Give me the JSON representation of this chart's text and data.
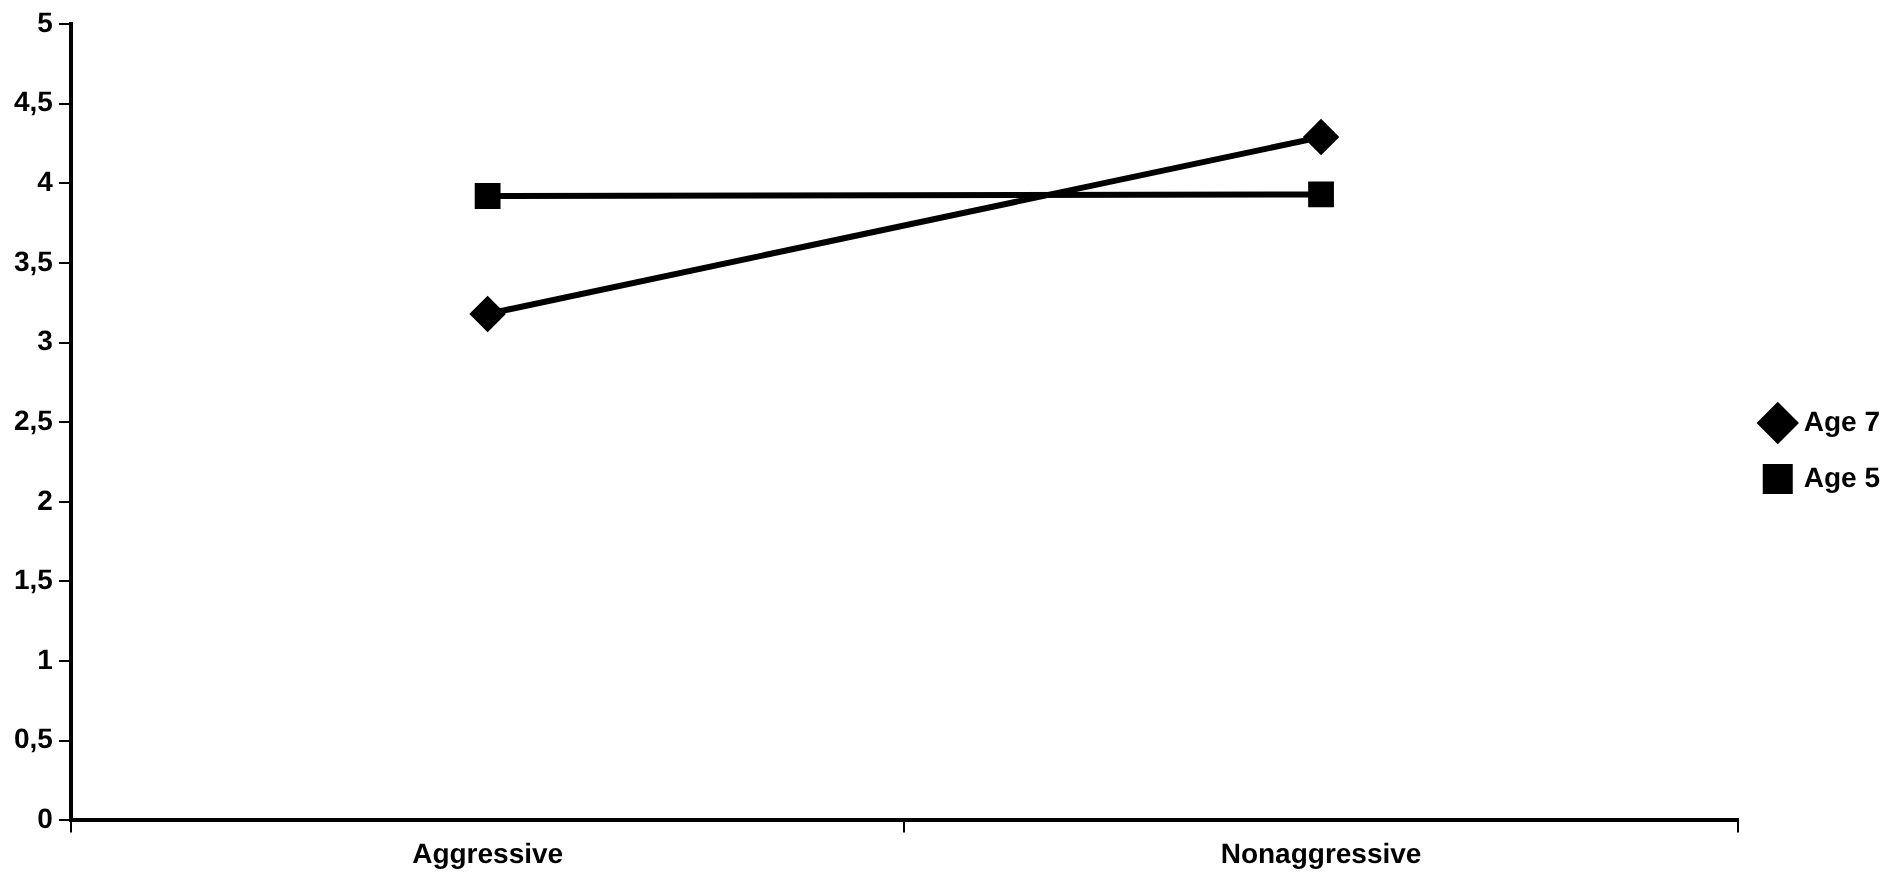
{
  "chart_data": {
    "type": "line",
    "categories": [
      "Aggressive",
      "Nonaggressive"
    ],
    "series": [
      {
        "name": "Age 7",
        "color": "#000000",
        "values": [
          3.18,
          4.29
        ],
        "marker": "diamond"
      },
      {
        "name": "Age 5",
        "color": "#000000",
        "values": [
          3.92,
          3.93
        ],
        "marker": "square"
      }
    ],
    "ylim": [
      0,
      5
    ],
    "yticks": [
      0,
      {
        "value": 0.5,
        "label": "0,5"
      },
      1,
      {
        "value": 1.5,
        "label": "1,5"
      },
      2,
      {
        "value": 2.5,
        "label": "2,5"
      },
      3,
      {
        "value": 3.5,
        "label": "3,5"
      },
      4,
      {
        "value": 4.5,
        "label": "4,5"
      },
      5
    ],
    "grid": false,
    "legend": "right",
    "line_style": "solid"
  }
}
